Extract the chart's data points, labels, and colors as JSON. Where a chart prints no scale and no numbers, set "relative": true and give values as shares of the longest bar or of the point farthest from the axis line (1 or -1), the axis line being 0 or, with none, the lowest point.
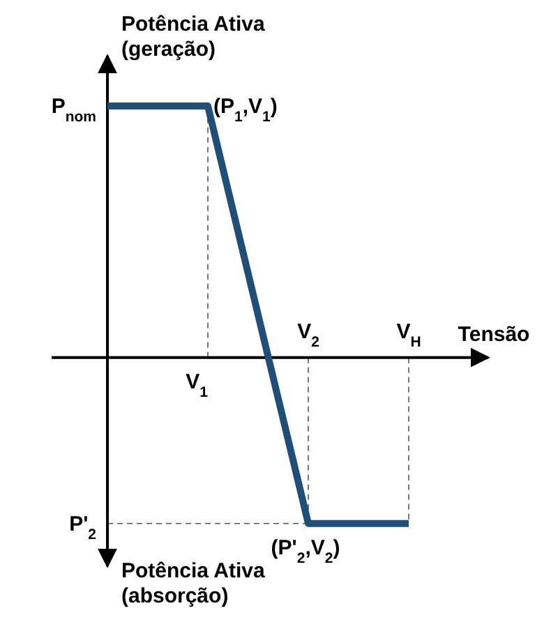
{
  "chart_data": {
    "type": "line",
    "relative": true,
    "ylabel": "Potência Ativa\n(geração)",
    "xlabel": "Tensão",
    "categories": [
      null,
      "V$_{1}$",
      "V$_{2}$",
      "V$_{H}$"
    ],
    "series": [
      {
        "color": "#1f4e79",
        "values": [
          1,
          1,
          -0.66,
          -0.66
        ]
      }
    ],
    "ref_lines": [
      {
        "axis": "x",
        "value": "V$_{H}$",
        "line_style": "dashed"
      },
      {
        "axis": "y",
        "value": -0.66,
        "line_style": "dashed",
        "label": "P'$_{2}$"
      }
    ],
    "annotations": [
      "P$_{nom}$",
      {
        "text": "(P$_{1}$,V$_{1}$)",
        "x": "V$_{1}$",
        "y": 1
      },
      {
        "text": "(P'$_{2}$,V$_{2}$)",
        "x": "V$_{2}$",
        "y": -0.66
      },
      "Potência Ativa\n(absorção)"
    ],
    "grid": "x",
    "marker": "none",
    "line_style": "solid"
  }
}
